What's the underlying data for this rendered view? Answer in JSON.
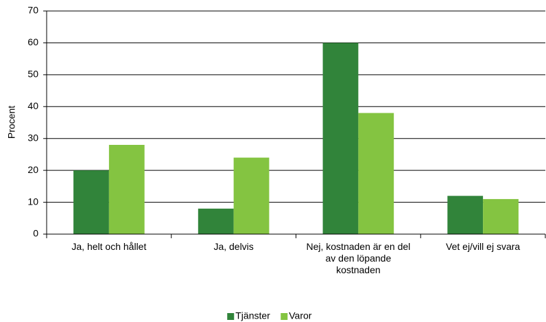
{
  "chart_data": {
    "type": "bar",
    "y_label": "Procent",
    "categories": [
      "Ja, helt och hållet",
      "Ja, delvis",
      "Nej, kostnaden är en del av den löpande kostnaden",
      "Vet ej/vill ej svara"
    ],
    "series": [
      {
        "name": "Tjänster",
        "color": "#31843a",
        "values": [
          20,
          8,
          60,
          12
        ]
      },
      {
        "name": "Varor",
        "color": "#84c441",
        "values": [
          28,
          24,
          38,
          11
        ]
      }
    ],
    "ylim": [
      0,
      70
    ],
    "yticks": [
      0,
      10,
      20,
      30,
      40,
      50,
      60,
      70
    ],
    "grid": true,
    "legend": "bottom"
  }
}
